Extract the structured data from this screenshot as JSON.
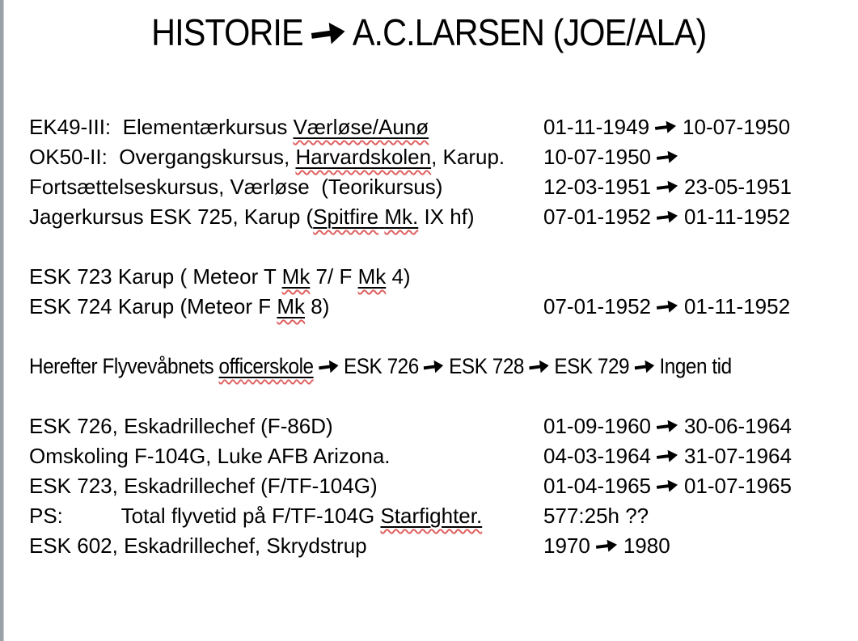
{
  "colors": {
    "background": "#ffffff",
    "text": "#000000",
    "left_strip": "#9aa1a8",
    "spellcheck_squiggle": "#e06060",
    "manual_underline": "#000000"
  },
  "title": {
    "segments": [
      {
        "t": "HISTORIE "
      },
      {
        "arrow": true
      },
      {
        "t": " A.C.LARSEN (JOE/ALA)"
      }
    ]
  },
  "rows": [
    {
      "name": "row-ek49",
      "left": [
        {
          "t": "EK49-III:  Elementærkursus "
        },
        {
          "t": "Værløse/Aunø",
          "u": true,
          "sq": true
        }
      ],
      "right": [
        {
          "t": "01-11-1949 "
        },
        {
          "arrow": true
        },
        {
          "t": " 10-07-1950"
        }
      ]
    },
    {
      "name": "row-ok50",
      "left": [
        {
          "t": "OK50-II:  Overgangskursus, "
        },
        {
          "t": "Harvardskolen",
          "u": true,
          "sq": true
        },
        {
          "t": ", Karup."
        }
      ],
      "right": [
        {
          "t": "10-07-1950 "
        },
        {
          "arrow": true
        }
      ]
    },
    {
      "name": "row-fortsaettelseskursus",
      "left": [
        {
          "t": "Fortsættelseskursus, Værløse  (Teorikursus)"
        }
      ],
      "right": [
        {
          "t": "12-03-1951 "
        },
        {
          "arrow": true
        },
        {
          "t": " 23-05-1951"
        }
      ]
    },
    {
      "name": "row-jagerkursus",
      "left": [
        {
          "t": "Jagerkursus ESK 725, Karup ("
        },
        {
          "t": "Spitfire",
          "u": true,
          "sq": true
        },
        {
          "t": " ",
          "u": true
        },
        {
          "t": "Mk.",
          "u": true,
          "sq": true
        },
        {
          "t": " IX hf)"
        }
      ],
      "right": [
        {
          "t": "07-01-1952 "
        },
        {
          "arrow": true
        },
        {
          "t": " 01-11-1952"
        }
      ]
    },
    {
      "blank": true
    },
    {
      "name": "row-esk723-meteor",
      "left": [
        {
          "t": "ESK 723 Karup ( Meteor T "
        },
        {
          "t": "Mk",
          "u": true,
          "sq": true
        },
        {
          "t": " 7/ F "
        },
        {
          "t": "Mk",
          "u": true,
          "sq": true
        },
        {
          "t": " 4)"
        }
      ],
      "right": []
    },
    {
      "name": "row-esk724-meteor",
      "left": [
        {
          "t": "ESK 724 Karup (Meteor F "
        },
        {
          "t": "Mk",
          "u": true,
          "sq": true
        },
        {
          "t": " 8)"
        }
      ],
      "right": [
        {
          "t": "07-01-1952 "
        },
        {
          "arrow": true
        },
        {
          "t": " 01-11-1952"
        }
      ]
    },
    {
      "blank": true
    },
    {
      "name": "row-officerskole",
      "condensed": true,
      "left": [
        {
          "t": "Herefter Flyvevåbnets "
        },
        {
          "t": "officerskole",
          "u": true,
          "sq": true
        },
        {
          "t": " "
        },
        {
          "arrow": true
        },
        {
          "t": " ESK 726 "
        },
        {
          "arrow": true
        },
        {
          "t": " ESK 728 "
        },
        {
          "arrow": true
        },
        {
          "t": " ESK 729 "
        },
        {
          "arrow": true
        },
        {
          "t": " Ingen tid"
        }
      ],
      "right": []
    },
    {
      "blank": true
    },
    {
      "name": "row-esk726-chef",
      "left": [
        {
          "t": "ESK 726, Eskadrillechef (F-86D)"
        }
      ],
      "right": [
        {
          "t": "01-09-1960 "
        },
        {
          "arrow": true
        },
        {
          "t": " 30-06-1964"
        }
      ]
    },
    {
      "name": "row-omskoling",
      "left": [
        {
          "t": "Omskoling F-104G, Luke AFB Arizona."
        }
      ],
      "right": [
        {
          "t": "04-03-1964 "
        },
        {
          "arrow": true
        },
        {
          "t": " 31-07-1964"
        }
      ]
    },
    {
      "name": "row-esk723-chef",
      "left": [
        {
          "t": "ESK 723, Eskadrillechef (F/TF-104G)"
        }
      ],
      "right": [
        {
          "t": "01-04-1965 "
        },
        {
          "arrow": true
        },
        {
          "t": " 01-07-1965"
        }
      ]
    },
    {
      "name": "row-ps-flyvetid",
      "left": [
        {
          "t": "PS:          Total flyvetid på F/TF-104G "
        },
        {
          "t": "Starfighter.",
          "u": true,
          "sq": true
        }
      ],
      "right": [
        {
          "t": "577:25h ??"
        }
      ]
    },
    {
      "name": "row-esk602-chef",
      "left": [
        {
          "t": "ESK 602, Eskadrillechef, Skrydstrup"
        }
      ],
      "right": [
        {
          "t": "1970 "
        },
        {
          "arrow": true
        },
        {
          "t": " 1980"
        }
      ]
    }
  ]
}
